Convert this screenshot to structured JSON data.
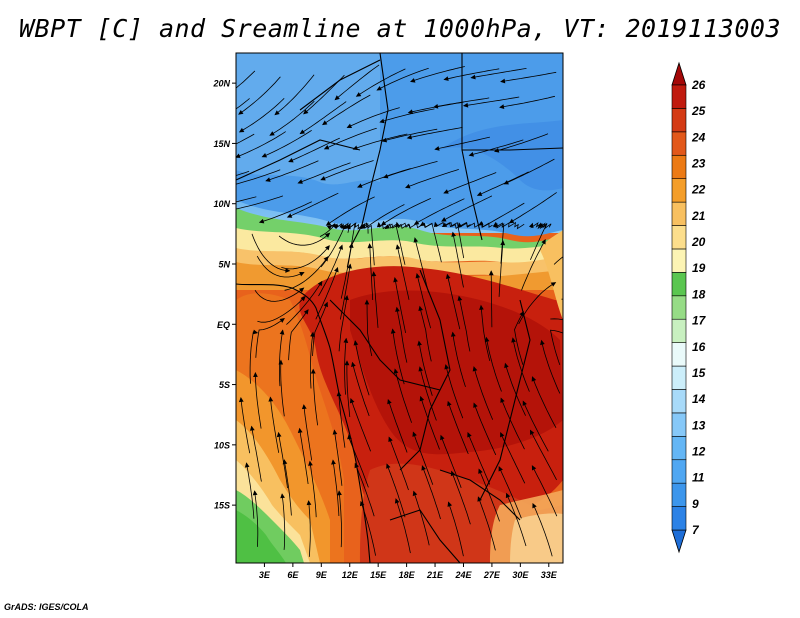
{
  "title": "WBPT [C] and Sreamline at 1000hPa, VT: 2019113003",
  "credit": "GrADS: IGES/COLA",
  "map": {
    "lat_labels": [
      "20N",
      "15N",
      "10N",
      "5N",
      "EQ",
      "5S",
      "10S",
      "15S"
    ],
    "lon_labels": [
      "3E",
      "6E",
      "9E",
      "12E",
      "15E",
      "18E",
      "21E",
      "24E",
      "27E",
      "30E",
      "33E"
    ],
    "lat_range": [
      -19.8,
      22.5
    ],
    "lon_range": [
      0,
      34.5
    ],
    "variable": "WBPT",
    "units": "C",
    "level": "1000hPa",
    "valid_time": "2019113003"
  },
  "colorbar": {
    "labels": [
      "7",
      "9",
      "11",
      "12",
      "13",
      "14",
      "15",
      "16",
      "17",
      "18",
      "19",
      "20",
      "21",
      "22",
      "23",
      "24",
      "25",
      "26"
    ],
    "colors": [
      "#1e6ed8",
      "#2c82e6",
      "#3c96ec",
      "#50a7f2",
      "#64b6f5",
      "#86c8f8",
      "#a8daf9",
      "#cceefa",
      "#eafafa",
      "#c8f0c0",
      "#96dc86",
      "#5ac650",
      "#fcf4b4",
      "#fcde8c",
      "#f8c060",
      "#f49e2a",
      "#ec7a14",
      "#e2581a",
      "#d43a14",
      "#c01a0e",
      "#a40808"
    ]
  }
}
